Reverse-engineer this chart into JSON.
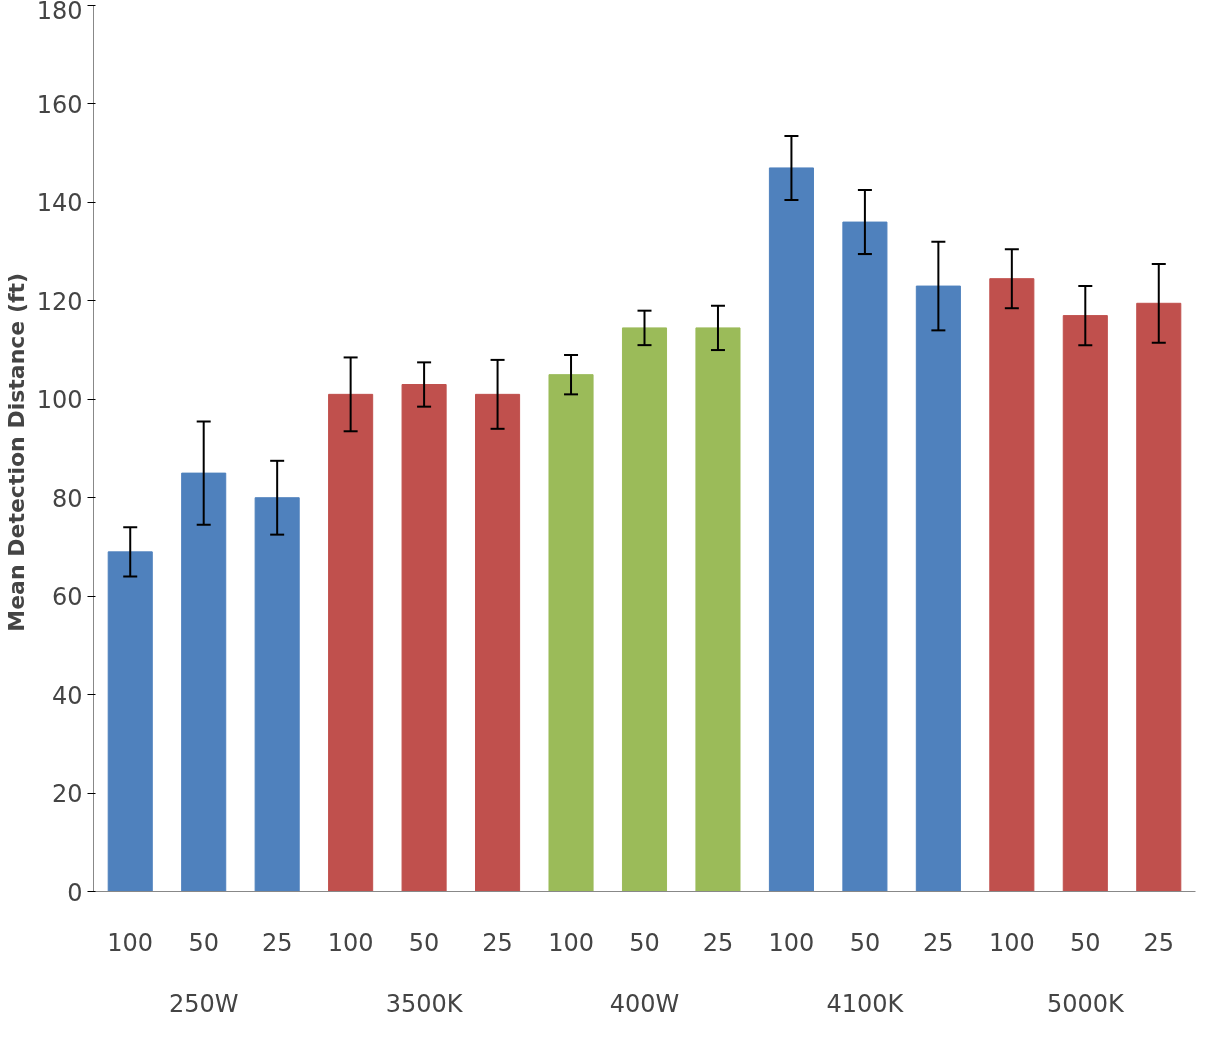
{
  "chart_data": {
    "type": "bar",
    "ylabel": "Mean Detection Distance  (ft)",
    "categories": [
      "100",
      "50",
      "25",
      "100",
      "50",
      "25",
      "100",
      "50",
      "25",
      "100",
      "50",
      "25",
      "100",
      "50",
      "25"
    ],
    "values": [
      69,
      85,
      80,
      101,
      103,
      101,
      105,
      114.5,
      114.5,
      147,
      136,
      123,
      124.5,
      117,
      119.5
    ],
    "errors": [
      5,
      10.5,
      7.5,
      7.5,
      4.5,
      7,
      4,
      3.5,
      4.5,
      6.5,
      6.5,
      9,
      6,
      6,
      8
    ],
    "colors": [
      "#4f81bd",
      "#4f81bd",
      "#4f81bd",
      "#c0504d",
      "#c0504d",
      "#c0504d",
      "#9bbb59",
      "#9bbb59",
      "#9bbb59",
      "#4f81bd",
      "#4f81bd",
      "#4f81bd",
      "#c0504d",
      "#c0504d",
      "#c0504d"
    ],
    "annotations": [
      "250W",
      "3500K",
      "400W",
      "4100K",
      "5000K"
    ],
    "ylim": [
      0,
      180
    ],
    "yticks": [
      0,
      20,
      40,
      60,
      80,
      100,
      120,
      140,
      160,
      180
    ],
    "grid": false
  }
}
